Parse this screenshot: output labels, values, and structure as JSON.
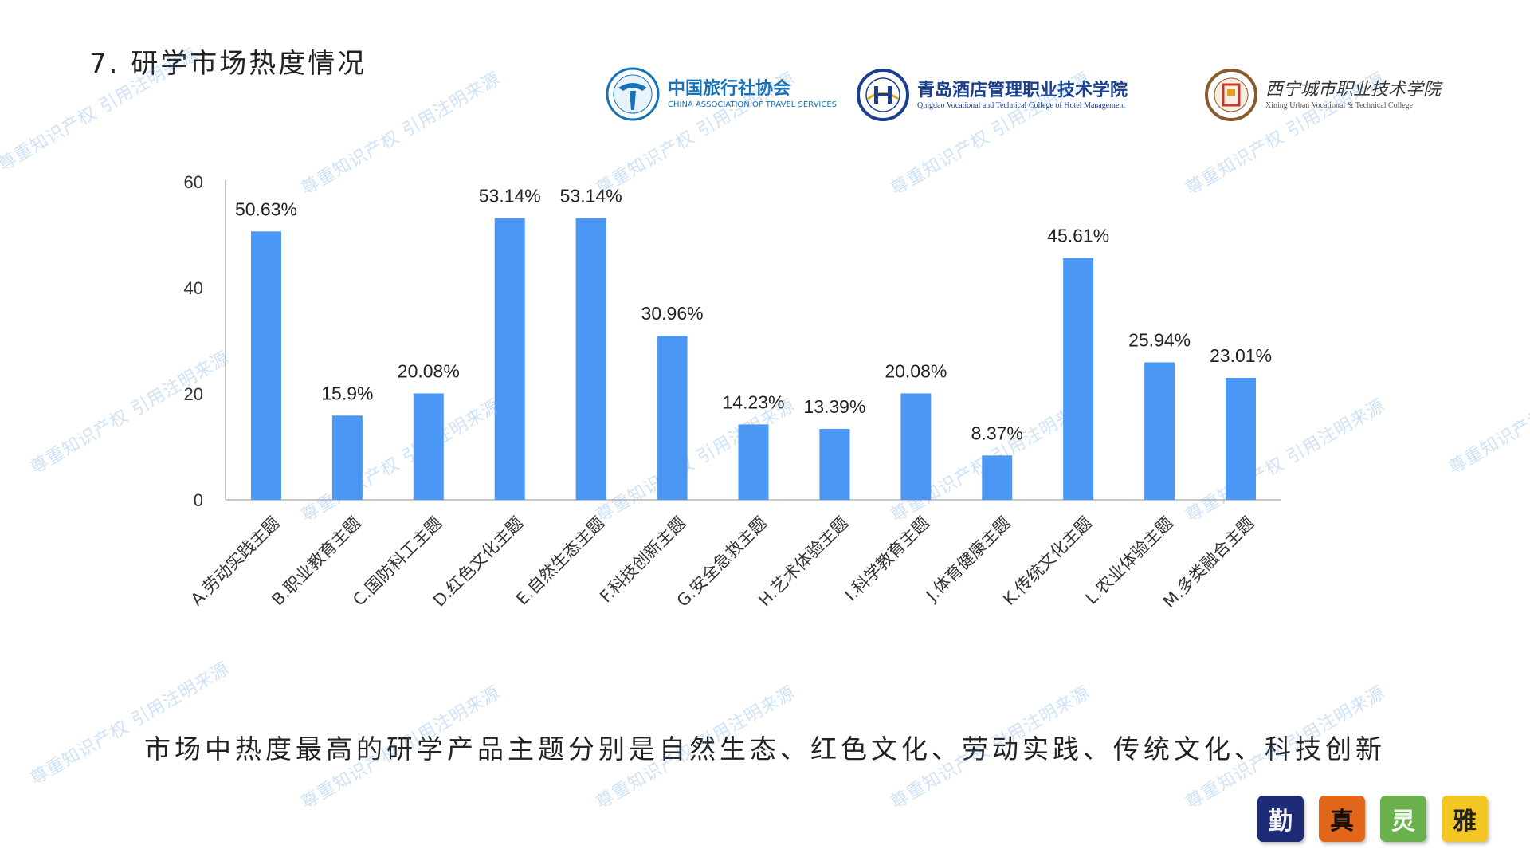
{
  "slide": {
    "title": "7. 研学市场热度情况",
    "summary": "市场中热度最高的研学产品主题分别是自然生态、红色文化、劳动实践、传统文化、科技创新"
  },
  "logos": {
    "cats": {
      "name": "中国旅行社协会",
      "sub": "CHINA ASSOCIATION OF TRAVEL SERVICES",
      "icon": "cats-logo-icon"
    },
    "qingdao": {
      "name": "青岛酒店管理职业技术学院",
      "sub": "Qingdao Vocational and Technical College of Hotel Management",
      "icon": "qingdao-college-logo-icon"
    },
    "xining": {
      "name": "西宁城市职业技术学院",
      "sub": "Xining Urban Vocational & Technical College",
      "icon": "xining-college-logo-icon"
    }
  },
  "virtues": [
    "勤",
    "真",
    "灵",
    "雅"
  ],
  "watermark": {
    "text": "尊重知识产权  引用注明来源"
  },
  "colors": {
    "bar": "#4b97f5",
    "axis": "#c8c8c8"
  },
  "chart_data": {
    "type": "bar",
    "categories": [
      "A.劳动实践主题",
      "B.职业教育主题",
      "C.国防科工主题",
      "D.红色文化主题",
      "E.自然生态主题",
      "F.科技创新主题",
      "G.安全急救主题",
      "H.艺术体验主题",
      "I.科学教育主题",
      "J.体育健康主题",
      "K.传统文化主题",
      "L.农业体验主题",
      "M.多类融合主题"
    ],
    "values": [
      50.63,
      15.9,
      20.08,
      53.14,
      53.14,
      30.96,
      14.23,
      13.39,
      20.08,
      8.37,
      45.61,
      25.94,
      23.01
    ],
    "data_labels": [
      "50.63%",
      "15.9%",
      "20.08%",
      "53.14%",
      "53.14%",
      "30.96%",
      "14.23%",
      "13.39%",
      "20.08%",
      "8.37%",
      "45.61%",
      "25.94%",
      "23.01%"
    ],
    "y_ticks": [
      "0",
      "20",
      "40",
      "60"
    ],
    "ylim": [
      0,
      60
    ],
    "grid": false,
    "legend": "none"
  }
}
